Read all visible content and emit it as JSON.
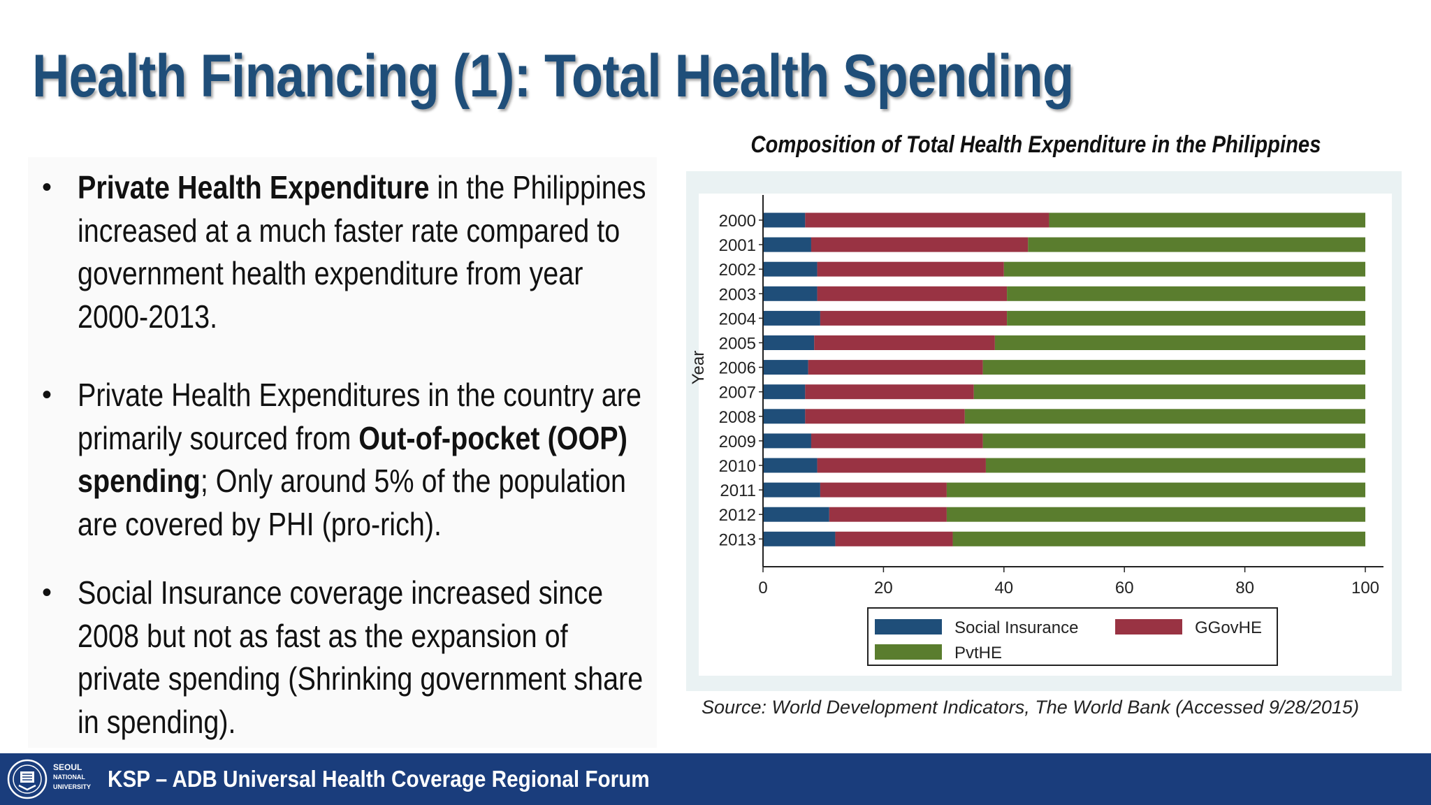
{
  "slide": {
    "title": "Health Financing (1): Total Health Spending"
  },
  "bullets": [
    {
      "segments": [
        {
          "text": "Private Health Expenditure",
          "bold": true
        },
        {
          "text": " in the Philippines increased at a much faster rate compared to government health expenditure from year 2000-2013.",
          "bold": false
        }
      ]
    },
    {
      "segments": [
        {
          "text": "Private Health Expenditures in the country are primarily sourced from ",
          "bold": false
        },
        {
          "text": "Out-of-pocket (OOP) spending",
          "bold": true
        },
        {
          "text": "; Only around 5% of the population are covered by PHI (pro-rich).",
          "bold": false
        }
      ]
    },
    {
      "segments": [
        {
          "text": "Social Insurance coverage increased since 2008 but not as fast as the expansion of private spending (Shrinking government share in spending).",
          "bold": false
        }
      ]
    }
  ],
  "bullet_symbol": "•",
  "chart_data": {
    "type": "bar",
    "orientation": "horizontal",
    "stacked": true,
    "title": "Composition of Total Health Expenditure in the Philippines",
    "ylabel": "Year",
    "xlabel": "",
    "categories": [
      "2000",
      "2001",
      "2002",
      "2003",
      "2004",
      "2005",
      "2006",
      "2007",
      "2008",
      "2009",
      "2010",
      "2011",
      "2012",
      "2013"
    ],
    "series": [
      {
        "name": "Social Insurance",
        "color": "#1f4e79",
        "values": [
          7,
          8,
          9,
          9,
          9.5,
          8.5,
          7.5,
          7,
          7,
          8,
          9,
          9.5,
          11,
          12
        ]
      },
      {
        "name": "GGovHE",
        "color": "#993343",
        "values": [
          40.5,
          36,
          31,
          31.5,
          31,
          30,
          29,
          28,
          26.5,
          28.5,
          28,
          21,
          19.5,
          19.5
        ]
      },
      {
        "name": "PvtHE",
        "color": "#5a7d2e",
        "values": [
          52.5,
          56,
          60,
          59.5,
          59.5,
          61.5,
          63.5,
          65,
          66.5,
          63.5,
          63,
          69.5,
          69.5,
          68.5
        ]
      }
    ],
    "xlim": [
      0,
      100
    ],
    "xticks": [
      0,
      20,
      40,
      60,
      80,
      100
    ],
    "grid": false,
    "legend_position": "bottom"
  },
  "source": "Source: World Development Indicators, The World Bank (Accessed 9/28/2015)",
  "footer": {
    "logo_text": [
      "SEOUL",
      "NATIONAL",
      "UNIVERSITY"
    ],
    "title": "KSP – ADB Universal Health Coverage Regional Forum"
  }
}
